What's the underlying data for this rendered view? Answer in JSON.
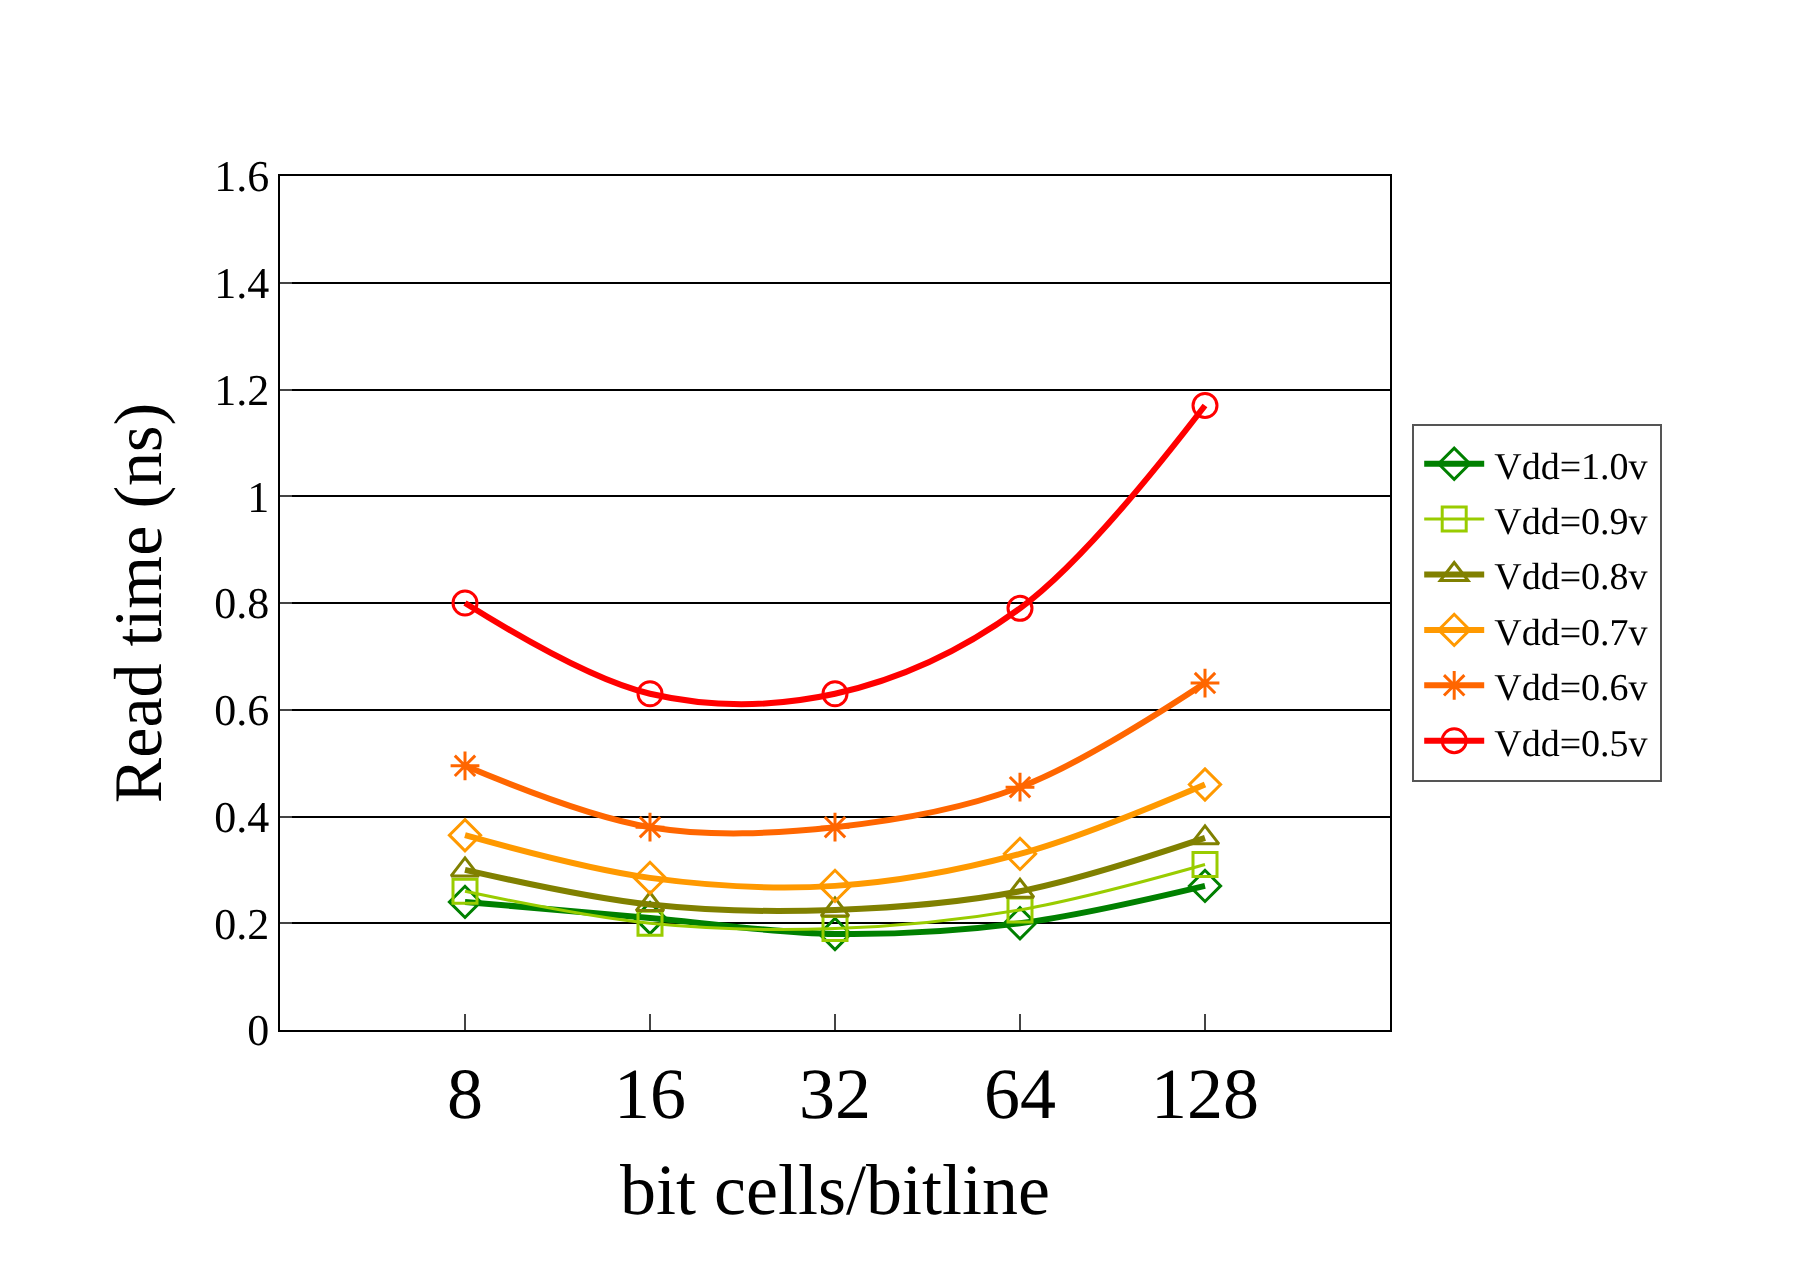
{
  "chart_data": {
    "type": "line",
    "xlabel": "bit cells/bitline",
    "ylabel": "Read time (ns)",
    "categories": [
      "8",
      "16",
      "32",
      "64",
      "128"
    ],
    "ylim": [
      0,
      1.6
    ],
    "yticks": [
      0,
      0.2,
      0.4,
      0.6,
      0.8,
      1,
      1.2,
      1.4,
      1.6
    ],
    "grid": "y",
    "legend": "right",
    "series": [
      {
        "name": "Vdd=1.0v",
        "color": "#008000",
        "marker": "diamond",
        "values": [
          0.24,
          0.21,
          0.18,
          0.2,
          0.27
        ]
      },
      {
        "name": "Vdd=0.9v",
        "color": "#99cc00",
        "marker": "square",
        "values": [
          0.26,
          0.2,
          0.19,
          0.225,
          0.31
        ]
      },
      {
        "name": "Vdd=0.8v",
        "color": "#808000",
        "marker": "triangle",
        "values": [
          0.3,
          0.235,
          0.225,
          0.26,
          0.36
        ]
      },
      {
        "name": "Vdd=0.7v",
        "color": "#ff9900",
        "marker": "diamond",
        "values": [
          0.365,
          0.285,
          0.27,
          0.33,
          0.46
        ]
      },
      {
        "name": "Vdd=0.6v",
        "color": "#ff6600",
        "marker": "cross",
        "values": [
          0.495,
          0.38,
          0.38,
          0.455,
          0.65
        ]
      },
      {
        "name": "Vdd=0.5v",
        "color": "#ff0000",
        "marker": "circle",
        "values": [
          0.8,
          0.63,
          0.63,
          0.79,
          1.17
        ]
      }
    ]
  }
}
